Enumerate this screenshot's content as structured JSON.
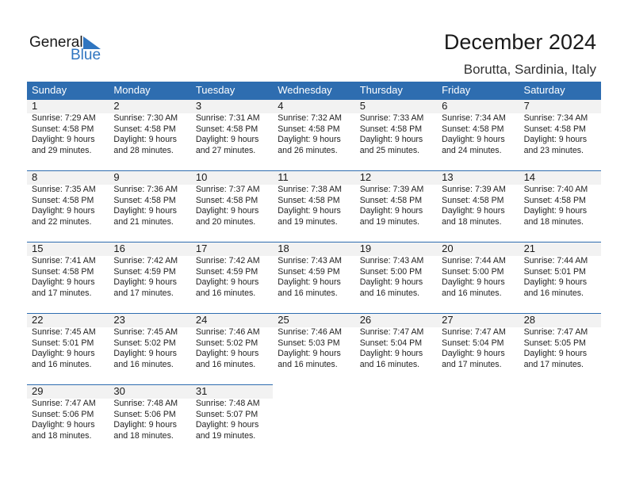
{
  "logo": {
    "text_general": "General",
    "text_blue": "Blue"
  },
  "title": "December 2024",
  "location": "Borutta, Sardinia, Italy",
  "colors": {
    "header": "#2e6db0",
    "band": "#f2f2f2",
    "logo_blue": "#2f75c0"
  },
  "weekdays": [
    "Sunday",
    "Monday",
    "Tuesday",
    "Wednesday",
    "Thursday",
    "Friday",
    "Saturday"
  ],
  "weeks": [
    [
      {
        "day": "1",
        "sunrise": "Sunrise: 7:29 AM",
        "sunset": "Sunset: 4:58 PM",
        "daylight": "Daylight: 9 hours",
        "minutes": "and 29 minutes."
      },
      {
        "day": "2",
        "sunrise": "Sunrise: 7:30 AM",
        "sunset": "Sunset: 4:58 PM",
        "daylight": "Daylight: 9 hours",
        "minutes": "and 28 minutes."
      },
      {
        "day": "3",
        "sunrise": "Sunrise: 7:31 AM",
        "sunset": "Sunset: 4:58 PM",
        "daylight": "Daylight: 9 hours",
        "minutes": "and 27 minutes."
      },
      {
        "day": "4",
        "sunrise": "Sunrise: 7:32 AM",
        "sunset": "Sunset: 4:58 PM",
        "daylight": "Daylight: 9 hours",
        "minutes": "and 26 minutes."
      },
      {
        "day": "5",
        "sunrise": "Sunrise: 7:33 AM",
        "sunset": "Sunset: 4:58 PM",
        "daylight": "Daylight: 9 hours",
        "minutes": "and 25 minutes."
      },
      {
        "day": "6",
        "sunrise": "Sunrise: 7:34 AM",
        "sunset": "Sunset: 4:58 PM",
        "daylight": "Daylight: 9 hours",
        "minutes": "and 24 minutes."
      },
      {
        "day": "7",
        "sunrise": "Sunrise: 7:34 AM",
        "sunset": "Sunset: 4:58 PM",
        "daylight": "Daylight: 9 hours",
        "minutes": "and 23 minutes."
      }
    ],
    [
      {
        "day": "8",
        "sunrise": "Sunrise: 7:35 AM",
        "sunset": "Sunset: 4:58 PM",
        "daylight": "Daylight: 9 hours",
        "minutes": "and 22 minutes."
      },
      {
        "day": "9",
        "sunrise": "Sunrise: 7:36 AM",
        "sunset": "Sunset: 4:58 PM",
        "daylight": "Daylight: 9 hours",
        "minutes": "and 21 minutes."
      },
      {
        "day": "10",
        "sunrise": "Sunrise: 7:37 AM",
        "sunset": "Sunset: 4:58 PM",
        "daylight": "Daylight: 9 hours",
        "minutes": "and 20 minutes."
      },
      {
        "day": "11",
        "sunrise": "Sunrise: 7:38 AM",
        "sunset": "Sunset: 4:58 PM",
        "daylight": "Daylight: 9 hours",
        "minutes": "and 19 minutes."
      },
      {
        "day": "12",
        "sunrise": "Sunrise: 7:39 AM",
        "sunset": "Sunset: 4:58 PM",
        "daylight": "Daylight: 9 hours",
        "minutes": "and 19 minutes."
      },
      {
        "day": "13",
        "sunrise": "Sunrise: 7:39 AM",
        "sunset": "Sunset: 4:58 PM",
        "daylight": "Daylight: 9 hours",
        "minutes": "and 18 minutes."
      },
      {
        "day": "14",
        "sunrise": "Sunrise: 7:40 AM",
        "sunset": "Sunset: 4:58 PM",
        "daylight": "Daylight: 9 hours",
        "minutes": "and 18 minutes."
      }
    ],
    [
      {
        "day": "15",
        "sunrise": "Sunrise: 7:41 AM",
        "sunset": "Sunset: 4:58 PM",
        "daylight": "Daylight: 9 hours",
        "minutes": "and 17 minutes."
      },
      {
        "day": "16",
        "sunrise": "Sunrise: 7:42 AM",
        "sunset": "Sunset: 4:59 PM",
        "daylight": "Daylight: 9 hours",
        "minutes": "and 17 minutes."
      },
      {
        "day": "17",
        "sunrise": "Sunrise: 7:42 AM",
        "sunset": "Sunset: 4:59 PM",
        "daylight": "Daylight: 9 hours",
        "minutes": "and 16 minutes."
      },
      {
        "day": "18",
        "sunrise": "Sunrise: 7:43 AM",
        "sunset": "Sunset: 4:59 PM",
        "daylight": "Daylight: 9 hours",
        "minutes": "and 16 minutes."
      },
      {
        "day": "19",
        "sunrise": "Sunrise: 7:43 AM",
        "sunset": "Sunset: 5:00 PM",
        "daylight": "Daylight: 9 hours",
        "minutes": "and 16 minutes."
      },
      {
        "day": "20",
        "sunrise": "Sunrise: 7:44 AM",
        "sunset": "Sunset: 5:00 PM",
        "daylight": "Daylight: 9 hours",
        "minutes": "and 16 minutes."
      },
      {
        "day": "21",
        "sunrise": "Sunrise: 7:44 AM",
        "sunset": "Sunset: 5:01 PM",
        "daylight": "Daylight: 9 hours",
        "minutes": "and 16 minutes."
      }
    ],
    [
      {
        "day": "22",
        "sunrise": "Sunrise: 7:45 AM",
        "sunset": "Sunset: 5:01 PM",
        "daylight": "Daylight: 9 hours",
        "minutes": "and 16 minutes."
      },
      {
        "day": "23",
        "sunrise": "Sunrise: 7:45 AM",
        "sunset": "Sunset: 5:02 PM",
        "daylight": "Daylight: 9 hours",
        "minutes": "and 16 minutes."
      },
      {
        "day": "24",
        "sunrise": "Sunrise: 7:46 AM",
        "sunset": "Sunset: 5:02 PM",
        "daylight": "Daylight: 9 hours",
        "minutes": "and 16 minutes."
      },
      {
        "day": "25",
        "sunrise": "Sunrise: 7:46 AM",
        "sunset": "Sunset: 5:03 PM",
        "daylight": "Daylight: 9 hours",
        "minutes": "and 16 minutes."
      },
      {
        "day": "26",
        "sunrise": "Sunrise: 7:47 AM",
        "sunset": "Sunset: 5:04 PM",
        "daylight": "Daylight: 9 hours",
        "minutes": "and 16 minutes."
      },
      {
        "day": "27",
        "sunrise": "Sunrise: 7:47 AM",
        "sunset": "Sunset: 5:04 PM",
        "daylight": "Daylight: 9 hours",
        "minutes": "and 17 minutes."
      },
      {
        "day": "28",
        "sunrise": "Sunrise: 7:47 AM",
        "sunset": "Sunset: 5:05 PM",
        "daylight": "Daylight: 9 hours",
        "minutes": "and 17 minutes."
      }
    ],
    [
      {
        "day": "29",
        "sunrise": "Sunrise: 7:47 AM",
        "sunset": "Sunset: 5:06 PM",
        "daylight": "Daylight: 9 hours",
        "minutes": "and 18 minutes."
      },
      {
        "day": "30",
        "sunrise": "Sunrise: 7:48 AM",
        "sunset": "Sunset: 5:06 PM",
        "daylight": "Daylight: 9 hours",
        "minutes": "and 18 minutes."
      },
      {
        "day": "31",
        "sunrise": "Sunrise: 7:48 AM",
        "sunset": "Sunset: 5:07 PM",
        "daylight": "Daylight: 9 hours",
        "minutes": "and 19 minutes."
      }
    ]
  ]
}
